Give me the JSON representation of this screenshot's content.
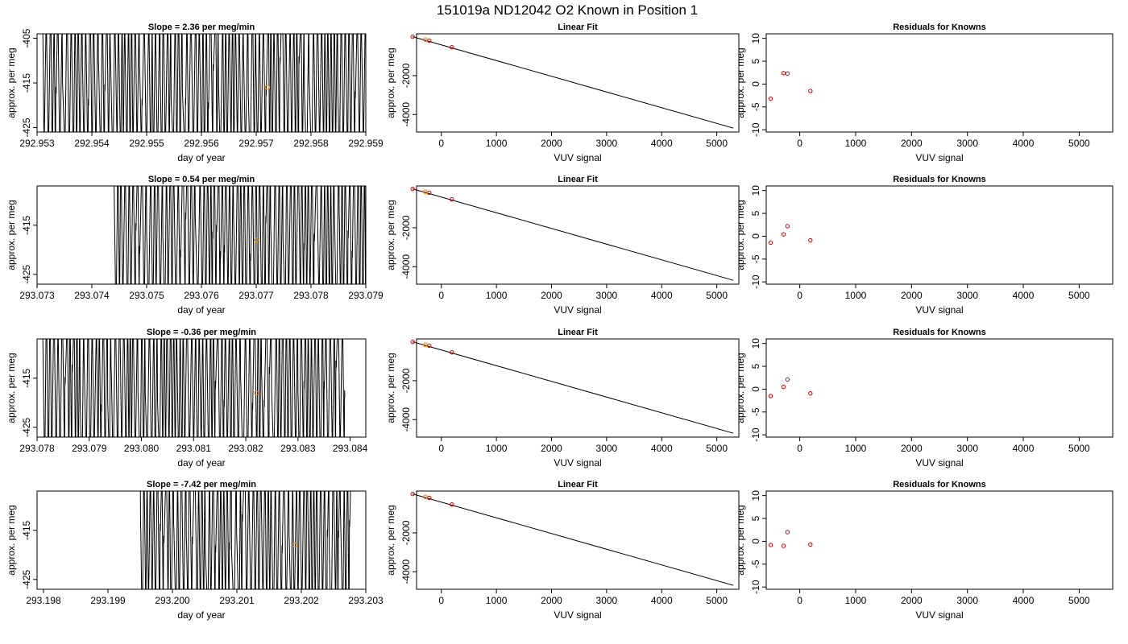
{
  "title": "151019a      ND12042   O2 Known in Position  1",
  "colors": {
    "line": "#000000",
    "fit": "#000000",
    "point_cal": "#cc0000",
    "point_unknown": "#ff9900",
    "frame": "#000000"
  },
  "chart_data": [
    {
      "type": "line",
      "title": "Slope =  2.36  per meg/min",
      "xlabel": "day of year",
      "ylabel": "approx. per meg",
      "xlim": [
        292.953,
        292.959
      ],
      "ylim": [
        -426,
        -404
      ],
      "xticks": [
        "292.953",
        "292.954",
        "292.955",
        "292.956",
        "292.957",
        "292.958",
        "292.959"
      ],
      "yticks": [
        "-405",
        "-415",
        "-425"
      ],
      "ytick_values": [
        -405,
        -415,
        -425
      ],
      "trace_start": 292.9531,
      "trace_end": 292.959,
      "trace_seed": 11,
      "marker": {
        "x": 292.9572,
        "y": -416
      }
    },
    {
      "type": "scatter",
      "title": "Linear Fit",
      "xlabel": "VUV signal",
      "ylabel": "approx. per meg",
      "xlim": [
        -450,
        5400
      ],
      "ylim": [
        -4900,
        150
      ],
      "xticks": [
        "0",
        "1000",
        "2000",
        "3000",
        "4000",
        "5000"
      ],
      "xtick_values": [
        0,
        1000,
        2000,
        3000,
        4000,
        5000
      ],
      "yticks": [
        "-2000",
        "-4000"
      ],
      "ytick_values": [
        -2000,
        -4000
      ],
      "points": [
        [
          -520,
          0
        ],
        [
          -290,
          -150
        ],
        [
          -220,
          -200
        ],
        [
          190,
          -540
        ]
      ],
      "highlight": [
        -290,
        -150
      ],
      "fit_line": [
        [
          -520,
          0
        ],
        [
          5300,
          -4700
        ]
      ]
    },
    {
      "type": "scatter",
      "title": "Residuals for Knowns",
      "xlabel": "VUV signal",
      "ylabel": "approx. per meg",
      "xlim": [
        -600,
        5600
      ],
      "ylim": [
        -10.5,
        11
      ],
      "xticks": [
        "0",
        "1000",
        "2000",
        "3000",
        "4000",
        "5000"
      ],
      "xtick_values": [
        0,
        1000,
        2000,
        3000,
        4000,
        5000
      ],
      "yticks": [
        "10",
        "5",
        "0",
        "-5",
        "-10"
      ],
      "ytick_values": [
        10,
        5,
        0,
        -5,
        -10
      ],
      "points": [
        [
          -520,
          -3.2
        ],
        [
          -290,
          2.4
        ],
        [
          -220,
          2.3
        ],
        [
          190,
          -1.5
        ]
      ]
    },
    {
      "type": "line",
      "title": "Slope =  0.54  per meg/min",
      "xlabel": "day of year",
      "ylabel": "approx. per meg",
      "xlim": [
        293.073,
        293.079
      ],
      "ylim": [
        -427,
        -407
      ],
      "xticks": [
        "293.073",
        "293.074",
        "293.075",
        "293.076",
        "293.077",
        "293.078",
        "293.079"
      ],
      "yticks": [
        "-415",
        "-425"
      ],
      "ytick_values": [
        -415,
        -425
      ],
      "trace_start": 293.0744,
      "trace_end": 293.079,
      "trace_seed": 23,
      "marker": {
        "x": 293.077,
        "y": -418
      }
    },
    {
      "type": "scatter",
      "title": "Linear Fit",
      "xlabel": "VUV signal",
      "ylabel": "approx. per meg",
      "xlim": [
        -450,
        5400
      ],
      "ylim": [
        -4900,
        150
      ],
      "xticks": [
        "0",
        "1000",
        "2000",
        "3000",
        "4000",
        "5000"
      ],
      "xtick_values": [
        0,
        1000,
        2000,
        3000,
        4000,
        5000
      ],
      "yticks": [
        "-2000",
        "-4000"
      ],
      "ytick_values": [
        -2000,
        -4000
      ],
      "points": [
        [
          -520,
          0
        ],
        [
          -290,
          -150
        ],
        [
          -220,
          -200
        ],
        [
          190,
          -540
        ]
      ],
      "highlight": [
        -290,
        -150
      ],
      "fit_line": [
        [
          -520,
          0
        ],
        [
          5300,
          -4700
        ]
      ]
    },
    {
      "type": "scatter",
      "title": "Residuals for Knowns",
      "xlabel": "VUV signal",
      "ylabel": "approx. per meg",
      "xlim": [
        -600,
        5600
      ],
      "ylim": [
        -10.5,
        11
      ],
      "xticks": [
        "0",
        "1000",
        "2000",
        "3000",
        "4000",
        "5000"
      ],
      "xtick_values": [
        0,
        1000,
        2000,
        3000,
        4000,
        5000
      ],
      "yticks": [
        "10",
        "5",
        "0",
        "-5",
        "-10"
      ],
      "ytick_values": [
        10,
        5,
        0,
        -5,
        -10
      ],
      "points": [
        [
          -520,
          -1.4
        ],
        [
          -290,
          0.4
        ],
        [
          -220,
          2.2
        ],
        [
          190,
          -0.9
        ]
      ]
    },
    {
      "type": "line",
      "title": "Slope =  -0.36  per meg/min",
      "xlabel": "day of year",
      "ylabel": "approx. per meg",
      "xlim": [
        293.078,
        293.0843
      ],
      "ylim": [
        -427,
        -407
      ],
      "xticks": [
        "293.078",
        "293.079",
        "293.080",
        "293.081",
        "293.082",
        "293.083",
        "293.084"
      ],
      "yticks": [
        "-415",
        "-425"
      ],
      "ytick_values": [
        -415,
        -425
      ],
      "trace_start": 293.0781,
      "trace_end": 293.0839,
      "trace_seed": 37,
      "marker": {
        "x": 293.0822,
        "y": -418
      }
    },
    {
      "type": "scatter",
      "title": "Linear Fit",
      "xlabel": "VUV signal",
      "ylabel": "approx. per meg",
      "xlim": [
        -450,
        5400
      ],
      "ylim": [
        -4900,
        150
      ],
      "xticks": [
        "0",
        "1000",
        "2000",
        "3000",
        "4000",
        "5000"
      ],
      "xtick_values": [
        0,
        1000,
        2000,
        3000,
        4000,
        5000
      ],
      "yticks": [
        "-2000",
        "-4000"
      ],
      "ytick_values": [
        -2000,
        -4000
      ],
      "points": [
        [
          -520,
          0
        ],
        [
          -290,
          -150
        ],
        [
          -220,
          -200
        ],
        [
          190,
          -540
        ]
      ],
      "highlight": [
        -290,
        -150
      ],
      "fit_line": [
        [
          -520,
          0
        ],
        [
          5300,
          -4700
        ]
      ]
    },
    {
      "type": "scatter",
      "title": "Residuals for Knowns",
      "xlabel": "VUV signal",
      "ylabel": "approx. per meg",
      "xlim": [
        -600,
        5600
      ],
      "ylim": [
        -10.5,
        11
      ],
      "xticks": [
        "0",
        "1000",
        "2000",
        "3000",
        "4000",
        "5000"
      ],
      "xtick_values": [
        0,
        1000,
        2000,
        3000,
        4000,
        5000
      ],
      "yticks": [
        "10",
        "5",
        "0",
        "-5",
        "-10"
      ],
      "ytick_values": [
        10,
        5,
        0,
        -5,
        -10
      ],
      "points": [
        [
          -520,
          -1.5
        ],
        [
          -290,
          0.5
        ],
        [
          -220,
          2.1
        ],
        [
          190,
          -0.9
        ]
      ]
    },
    {
      "type": "line",
      "title": "Slope =  -7.42  per meg/min",
      "xlabel": "day of year",
      "ylabel": "approx. per meg",
      "xlim": [
        293.1979,
        293.203
      ],
      "ylim": [
        -427,
        -407
      ],
      "xticks": [
        "293.198",
        "293.199",
        "293.200",
        "293.201",
        "293.202",
        "293.203"
      ],
      "yticks": [
        "-415",
        "-425"
      ],
      "ytick_values": [
        -415,
        -425
      ],
      "trace_start": 293.1995,
      "trace_end": 293.2028,
      "trace_seed": 53,
      "marker": {
        "x": 293.2019,
        "y": -418
      }
    },
    {
      "type": "scatter",
      "title": "Linear Fit",
      "xlabel": "VUV signal",
      "ylabel": "approx. per meg",
      "xlim": [
        -450,
        5400
      ],
      "ylim": [
        -4900,
        150
      ],
      "xticks": [
        "0",
        "1000",
        "2000",
        "3000",
        "4000",
        "5000"
      ],
      "xtick_values": [
        0,
        1000,
        2000,
        3000,
        4000,
        5000
      ],
      "yticks": [
        "-2000",
        "-4000"
      ],
      "ytick_values": [
        -2000,
        -4000
      ],
      "points": [
        [
          -520,
          0
        ],
        [
          -290,
          -150
        ],
        [
          -220,
          -200
        ],
        [
          190,
          -540
        ]
      ],
      "highlight": [
        -290,
        -150
      ],
      "fit_line": [
        [
          -520,
          0
        ],
        [
          5300,
          -4700
        ]
      ]
    },
    {
      "type": "scatter",
      "title": "Residuals for Knowns",
      "xlabel": "VUV signal",
      "ylabel": "approx. per meg",
      "xlim": [
        -600,
        5600
      ],
      "ylim": [
        -10.5,
        11
      ],
      "xticks": [
        "0",
        "1000",
        "2000",
        "3000",
        "4000",
        "5000"
      ],
      "xtick_values": [
        0,
        1000,
        2000,
        3000,
        4000,
        5000
      ],
      "yticks": [
        "10",
        "5",
        "0",
        "-5",
        "-10"
      ],
      "ytick_values": [
        10,
        5,
        0,
        -5,
        -10
      ],
      "points": [
        [
          -520,
          -0.8
        ],
        [
          -290,
          -1.0
        ],
        [
          -220,
          2.0
        ],
        [
          190,
          -0.7
        ]
      ]
    }
  ]
}
